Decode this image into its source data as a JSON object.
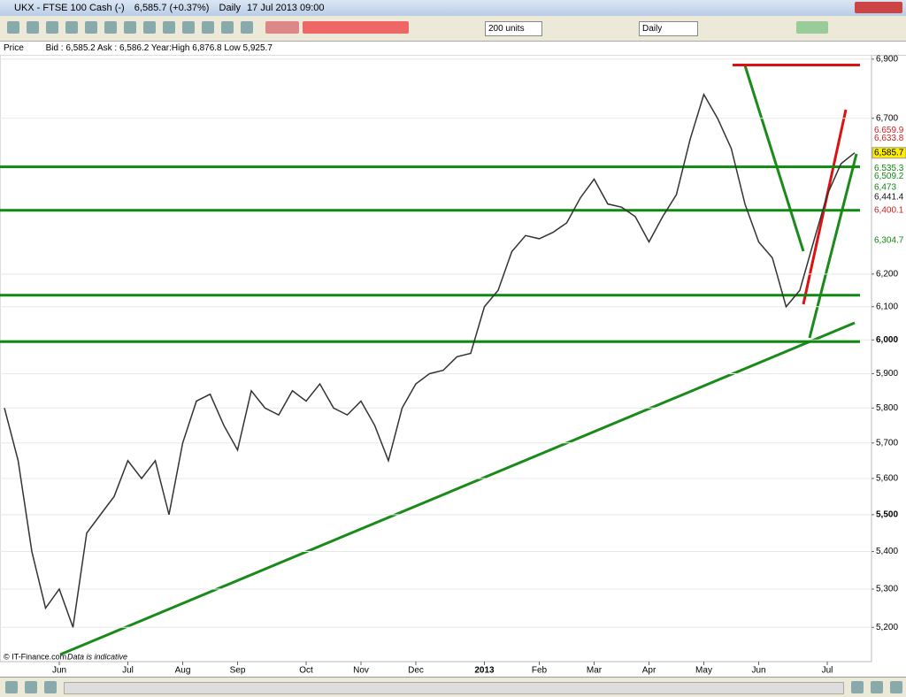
{
  "window": {
    "title": "UKX - FTSE 100 Cash (-)",
    "price": "6,585.7 (+0.37%)",
    "period": "Daily",
    "time": "17 Jul 2013 09:00"
  },
  "toolbar": {
    "units": "200 units",
    "interval": "Daily"
  },
  "info": {
    "label": "Price",
    "quote": "Bid : 6,585.2 Ask : 6,586.2 Year:High 6,876.8 Low 5,925.7"
  },
  "footer": {
    "copyright": "© IT-Finance.com",
    "note": "Data is indicative"
  },
  "chart_data": {
    "type": "line",
    "log_scale": true,
    "grid": true,
    "categories": [
      null,
      null,
      null,
      null,
      "Jun",
      null,
      null,
      null,
      null,
      "Jul",
      null,
      null,
      null,
      "Aug",
      null,
      null,
      null,
      "Sep",
      null,
      null,
      null,
      null,
      "Oct",
      null,
      null,
      null,
      "Nov",
      null,
      null,
      null,
      "Dec",
      null,
      null,
      null,
      null,
      "2013",
      null,
      null,
      null,
      "Feb",
      null,
      null,
      null,
      "Mar",
      null,
      null,
      null,
      "Apr",
      null,
      null,
      null,
      "May",
      null,
      null,
      null,
      "Jun",
      null,
      null,
      null,
      null,
      "Jul",
      null,
      null
    ],
    "series": [
      {
        "name": "UKX",
        "color": "#333333",
        "values": [
          5800,
          5650,
          5400,
          5250,
          5300,
          5200,
          5450,
          5500,
          5550,
          5650,
          5600,
          5650,
          5500,
          5700,
          5820,
          5840,
          5750,
          5680,
          5850,
          5800,
          5780,
          5850,
          5820,
          5870,
          5800,
          5780,
          5820,
          5750,
          5650,
          5800,
          5870,
          5900,
          5910,
          5950,
          5960,
          6100,
          6150,
          6270,
          6320,
          6310,
          6330,
          6360,
          6440,
          6500,
          6420,
          6410,
          6380,
          6300,
          6380,
          6450,
          6630,
          6780,
          6700,
          6600,
          6420,
          6300,
          6250,
          6100,
          6150,
          6300,
          6450,
          6550,
          6586
        ]
      }
    ],
    "ylim": [
      5112,
      6915
    ],
    "yticks": [
      {
        "value": 5200,
        "label": "5,200"
      },
      {
        "value": 5300,
        "label": "5,300"
      },
      {
        "value": 5400,
        "label": "5,400"
      },
      {
        "value": 5500,
        "label": "5,500"
      },
      {
        "value": 5600,
        "label": "5,600"
      },
      {
        "value": 5700,
        "label": "5,700"
      },
      {
        "value": 5800,
        "label": "5,800"
      },
      {
        "value": 5900,
        "label": "5,900"
      },
      {
        "value": 6000,
        "label": "6,000"
      },
      {
        "value": 6100,
        "label": "6,100"
      },
      {
        "value": 6200,
        "label": "6,200"
      },
      {
        "value": 6700,
        "label": "6,700"
      },
      {
        "value": 6900,
        "label": "6,900"
      }
    ],
    "hlines": [
      {
        "value": 6880,
        "color": "#dd1111"
      },
      {
        "value": 6540,
        "color": "#118811"
      },
      {
        "value": 6400,
        "color": "#118811"
      },
      {
        "value": 6135,
        "color": "#118811"
      },
      {
        "value": 5995,
        "color": "#118811"
      }
    ],
    "price_markers": [
      {
        "value": 6659.9,
        "label": "6,659.9",
        "color": "#cc2222"
      },
      {
        "value": 6633.8,
        "label": "6,633.8",
        "color": "#cc2222"
      },
      {
        "value": 6585.7,
        "label": "6,585.7",
        "color": "#ffee00"
      },
      {
        "value": 6535.3,
        "label": "6,535.3",
        "color": "#118811"
      },
      {
        "value": 6509.2,
        "label": "6,509.2",
        "color": "#118811"
      },
      {
        "value": 6473,
        "label": "6,473",
        "color": "#118811"
      },
      {
        "value": 6441.4,
        "label": "6,441.4",
        "color": "#111111"
      },
      {
        "value": 6400.1,
        "label": "6,400.1",
        "color": "#cc2222"
      },
      {
        "value": 6304.7,
        "label": "6,304.7",
        "color": "#118811"
      }
    ]
  }
}
